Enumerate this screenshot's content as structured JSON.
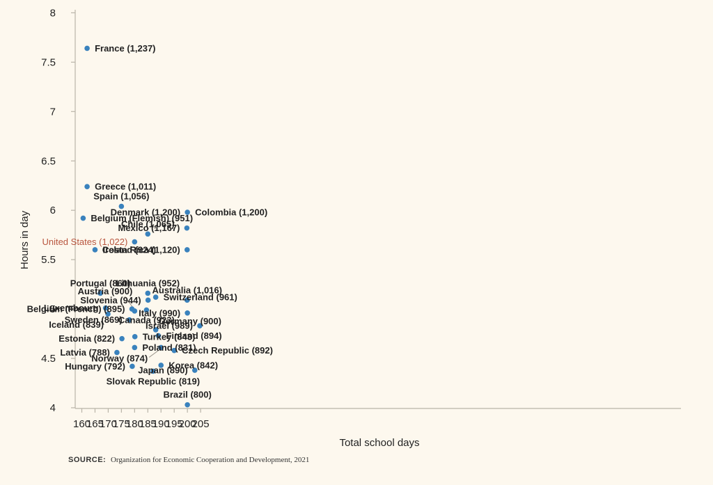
{
  "chart_data": {
    "type": "scatter",
    "title": "",
    "xlabel": "Total school days",
    "ylabel": "Hours in day",
    "xlim": [
      158,
      208
    ],
    "ylim": [
      4,
      8
    ],
    "x_ticks": [
      160,
      165,
      170,
      175,
      180,
      185,
      190,
      195,
      200,
      205
    ],
    "y_ticks": [
      4,
      4.5,
      5,
      5.5,
      6,
      6.5,
      7,
      7.5,
      8
    ],
    "y_tick_labels": [
      "4",
      "4.5",
      "5",
      "5.5",
      "6",
      "6.5",
      "7",
      "7.5",
      "8"
    ],
    "grid": false,
    "point_color": "#3a82bd",
    "highlight_color": "#b8553e",
    "points": [
      {
        "label": "France (1,237)",
        "x": 162,
        "y": 7.64,
        "pos": "right"
      },
      {
        "label": "Greece (1,011)",
        "x": 162,
        "y": 6.24,
        "pos": "right"
      },
      {
        "label": "Belgium (Flemish) (951)",
        "x": 160.5,
        "y": 5.92,
        "pos": "right"
      },
      {
        "label": "Spain (1,056)",
        "x": 175,
        "y": 6.04,
        "pos": "above"
      },
      {
        "label": "Ireland (924)",
        "x": 165,
        "y": 5.6,
        "pos": "right"
      },
      {
        "label": "United States (1,022)",
        "x": 180,
        "y": 5.68,
        "pos": "left",
        "highlight": true
      },
      {
        "label": "Chile (1,065)",
        "x": 185,
        "y": 5.76,
        "pos": "above"
      },
      {
        "label": "Denmark (1,200)",
        "x": 200,
        "y": 5.98,
        "pos": "left"
      },
      {
        "label": "Colombia (1,200)",
        "x": 200,
        "y": 5.98,
        "pos": "right"
      },
      {
        "label": "Mexico (1,167)",
        "x": 199.8,
        "y": 5.82,
        "pos": "left"
      },
      {
        "label": "Costa Rica (1,120)",
        "x": 199.9,
        "y": 5.6,
        "pos": "left"
      },
      {
        "label": "Portugal (860)",
        "x": 167,
        "y": 5.16,
        "pos": "above"
      },
      {
        "label": "Luxembourg",
        "x": 169,
        "y": 5.01,
        "pos": "left"
      },
      {
        "label": "Iceland (839)",
        "x": 169.9,
        "y": 4.95,
        "pos": "below-left"
      },
      {
        "label": "Belgium (French) (895)",
        "x": 179,
        "y": 5.0,
        "pos": "left"
      },
      {
        "label": "Austria (900)",
        "x": 180,
        "y": 4.98,
        "pos": "leader"
      },
      {
        "label": "Sweden (869)",
        "x": 178,
        "y": 4.89,
        "pos": "left"
      },
      {
        "label": "Lithuania (952)",
        "x": 185,
        "y": 5.16,
        "pos": "above"
      },
      {
        "label": "Slovenia (944)",
        "x": 185.1,
        "y": 5.09,
        "pos": "left"
      },
      {
        "label": "Canada (923)",
        "x": 184.5,
        "y": 4.99,
        "pos": "below"
      },
      {
        "label": "Switzerland (961)",
        "x": 188,
        "y": 5.12,
        "pos": "right"
      },
      {
        "label": "Australia (1,016)",
        "x": 199.9,
        "y": 5.09,
        "pos": "above"
      },
      {
        "label": "Italy (990)",
        "x": 200,
        "y": 4.96,
        "pos": "left"
      },
      {
        "label": "Israel (989)",
        "x": 204.7,
        "y": 4.83,
        "pos": "left"
      },
      {
        "label": "Estonia (822)",
        "x": 175.2,
        "y": 4.7,
        "pos": "left"
      },
      {
        "label": "Latvia (788)",
        "x": 173.3,
        "y": 4.56,
        "pos": "left"
      },
      {
        "label": "Turkey (843)",
        "x": 180.1,
        "y": 4.72,
        "pos": "right"
      },
      {
        "label": "Poland (831)",
        "x": 180,
        "y": 4.61,
        "pos": "right"
      },
      {
        "label": "Hungary (792)",
        "x": 179.1,
        "y": 4.42,
        "pos": "left"
      },
      {
        "label": "Germany (900)",
        "x": 188,
        "y": 4.79,
        "pos": "above-right"
      },
      {
        "label": "Finland (894)",
        "x": 189,
        "y": 4.73,
        "pos": "right"
      },
      {
        "label": "Norway (874)",
        "x": 190,
        "y": 4.61,
        "pos": "leader-left"
      },
      {
        "label": "Korea (842)",
        "x": 190,
        "y": 4.43,
        "pos": "right"
      },
      {
        "label": "Slovak Republic (819)",
        "x": 187,
        "y": 4.37,
        "pos": "below"
      },
      {
        "label": "Czech Republic (892)",
        "x": 195,
        "y": 4.58,
        "pos": "right"
      },
      {
        "label": "Japan (890)",
        "x": 202.8,
        "y": 4.38,
        "pos": "left"
      },
      {
        "label": "Brazil (800)",
        "x": 200,
        "y": 4.03,
        "pos": "above"
      }
    ]
  },
  "source": {
    "label": "SOURCE:",
    "text": "Organization for Economic Cooperation and Development, 2021"
  }
}
